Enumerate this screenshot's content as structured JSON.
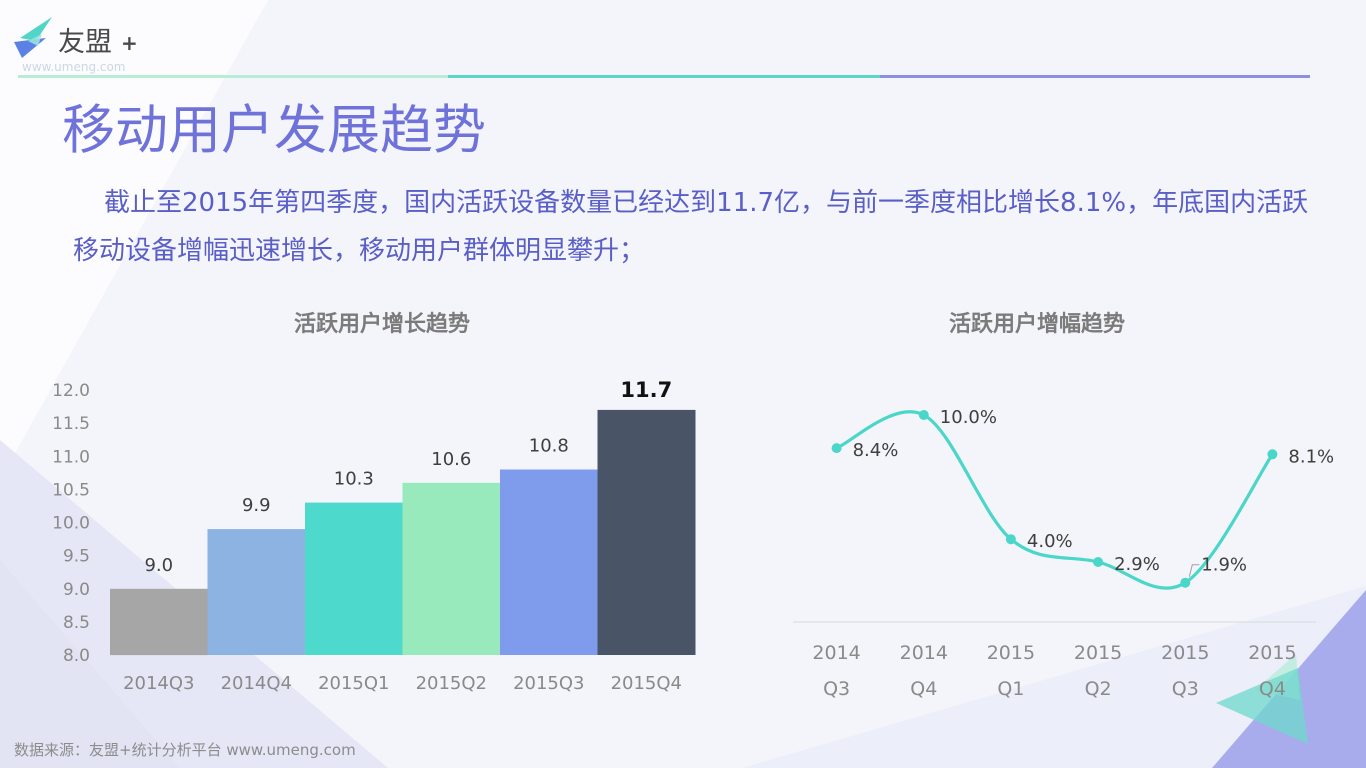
{
  "logo": {
    "name": "友盟",
    "plus": "+",
    "url": "www.umeng.com",
    "icon": "bird-logo-icon"
  },
  "title": "移动用户发展趋势",
  "summary": {
    "line1": "截止至2015年第四季度，国内活跃设备数量已经达到11.7亿，与前一季度相比增长8.1%，年底国内活跃",
    "line2": "移动设备增幅迅速增长，移动用户群体明显攀升；"
  },
  "footer": {
    "source": "数据来源：友盟+统计分析平台 www.umeng.com"
  },
  "colors": {
    "title": "#6f73d9",
    "text": "#5a5ec7",
    "rule_mint": "#b7edd4",
    "rule_teal": "#5dd5c9",
    "rule_purple": "#8a8fe0"
  },
  "chart_data": [
    {
      "type": "bar",
      "title": "活跃用户增长趋势",
      "xlabel": "",
      "ylabel": "",
      "categories": [
        "2014Q3",
        "2014Q4",
        "2015Q1",
        "2015Q2",
        "2015Q3",
        "2015Q4"
      ],
      "values": [
        9.0,
        9.9,
        10.3,
        10.6,
        10.8,
        11.7
      ],
      "data_labels": [
        "9.0",
        "9.9",
        "10.3",
        "10.6",
        "10.8",
        "11.7"
      ],
      "colors": [
        "#a6a6a6",
        "#8db3e2",
        "#4ed9cd",
        "#98e9bc",
        "#7f9bec",
        "#4a5467"
      ],
      "highlight_index": 5,
      "ylim": [
        8.0,
        12.0
      ],
      "yticks": [
        "8.0",
        "8.5",
        "9.0",
        "9.5",
        "10.0",
        "10.5",
        "11.0",
        "11.5",
        "12.0"
      ],
      "grid": false
    },
    {
      "type": "line",
      "title": "活跃用户增幅趋势",
      "xlabel": "",
      "ylabel": "",
      "categories": [
        {
          "year": "2014",
          "quarter": "Q3"
        },
        {
          "year": "2014",
          "quarter": "Q4"
        },
        {
          "year": "2015",
          "quarter": "Q1"
        },
        {
          "year": "2015",
          "quarter": "Q2"
        },
        {
          "year": "2015",
          "quarter": "Q3"
        },
        {
          "year": "2015",
          "quarter": "Q4"
        }
      ],
      "values": [
        8.4,
        10.0,
        4.0,
        2.9,
        1.9,
        8.1
      ],
      "data_labels": [
        "8.4%",
        "10.0%",
        "4.0%",
        "2.9%",
        "1.9%",
        "8.1%"
      ],
      "color": "#4ad6c8",
      "smooth": true,
      "ylim": [
        0,
        10
      ],
      "grid": false
    }
  ]
}
